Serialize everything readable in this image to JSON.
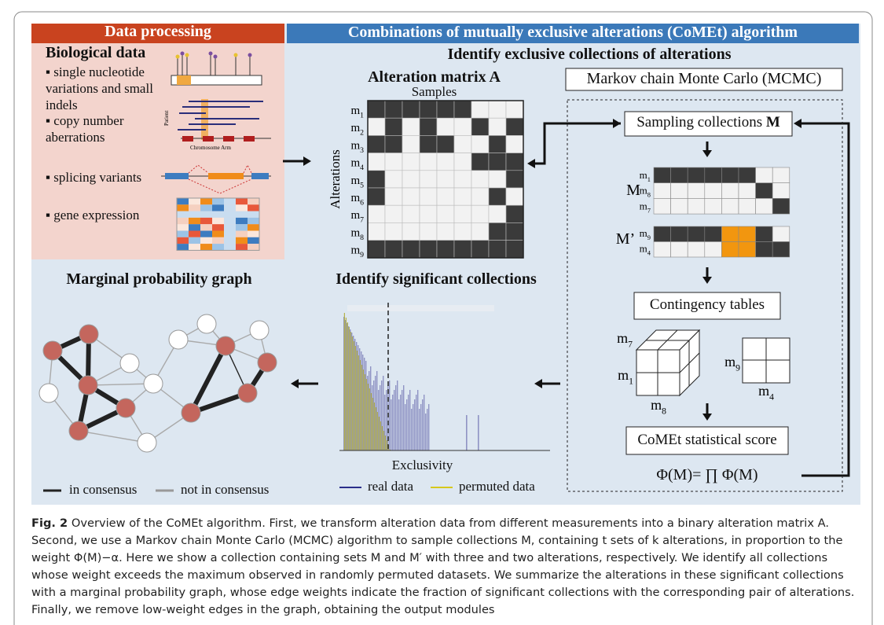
{
  "data_processing": {
    "title": "Data processing",
    "heading": "Biological data",
    "items": [
      "single nucleotide variations and small indels",
      "copy number aberrations",
      "splicing variants",
      "gene expression"
    ],
    "patient_label": "Patient",
    "chromosome_label": "Chromosome Arm"
  },
  "algorithm": {
    "title": "Combinations of mutually exclusive alterations (CoMEt) algorithm",
    "subtitle": "Identify exclusive collections of alterations"
  },
  "matrix": {
    "title": "Alteration matrix A",
    "x_label": "Samples",
    "y_label": "Alterations",
    "rows": [
      {
        "base": "m",
        "sub": "1"
      },
      {
        "base": "m",
        "sub": "2"
      },
      {
        "base": "m",
        "sub": "3"
      },
      {
        "base": "m",
        "sub": "4"
      },
      {
        "base": "m",
        "sub": "5"
      },
      {
        "base": "m",
        "sub": "6"
      },
      {
        "base": "m",
        "sub": "7"
      },
      {
        "base": "m",
        "sub": "8"
      },
      {
        "base": "m",
        "sub": "9"
      }
    ]
  },
  "mcmc": {
    "title": "Markov chain Monte Carlo (MCMC)",
    "sampling": {
      "text": "Sampling collections",
      "symbol": "M"
    },
    "set_m": {
      "label": "M",
      "rows": [
        {
          "base": "m",
          "sub": "1"
        },
        {
          "base": "m",
          "sub": "8"
        },
        {
          "base": "m",
          "sub": "7"
        }
      ]
    },
    "set_m_prime": {
      "label": "M’",
      "rows": [
        {
          "base": "m",
          "sub": "9"
        },
        {
          "base": "m",
          "sub": "4"
        }
      ]
    },
    "contingency": "Contingency tables",
    "cube_labels": [
      {
        "base": "m",
        "sub": "7"
      },
      {
        "base": "m",
        "sub": "1"
      },
      {
        "base": "m",
        "sub": "8"
      }
    ],
    "square_labels": [
      {
        "base": "m",
        "sub": "9"
      },
      {
        "base": "m",
        "sub": "4"
      }
    ],
    "score": "CoMEt statistical score",
    "formula": "Φ(M)= ∏ Φ(M)"
  },
  "significant": {
    "title": "Identify significant collections",
    "x_label": "Exclusivity",
    "legend": [
      "real data",
      "permuted data"
    ]
  },
  "graph": {
    "title": "Marginal probability graph",
    "legend": [
      "in consensus",
      "not in consensus"
    ]
  },
  "caption": {
    "label": "Fig. 2",
    "text": "Overview of the CoMEt algorithm. First, we transform alteration data from different measurements into a binary alteration matrix A. Second, we use a Markov chain Monte Carlo (MCMC) algorithm to sample collections M, containing t sets of k alterations, in proportion to the weight Φ(M)−α. Here we show a collection containing sets M and M′ with three and two alterations, respectively. We identify all collections whose weight exceeds the maximum observed in randomly permuted datasets. We summarize the alterations in these significant collections with a marginal probability graph, whose edge weights indicate the fraction of significant collections with the corresponding pair of alterations. Finally, we remove low-weight edges in the graph, obtaining the output modules"
  }
}
